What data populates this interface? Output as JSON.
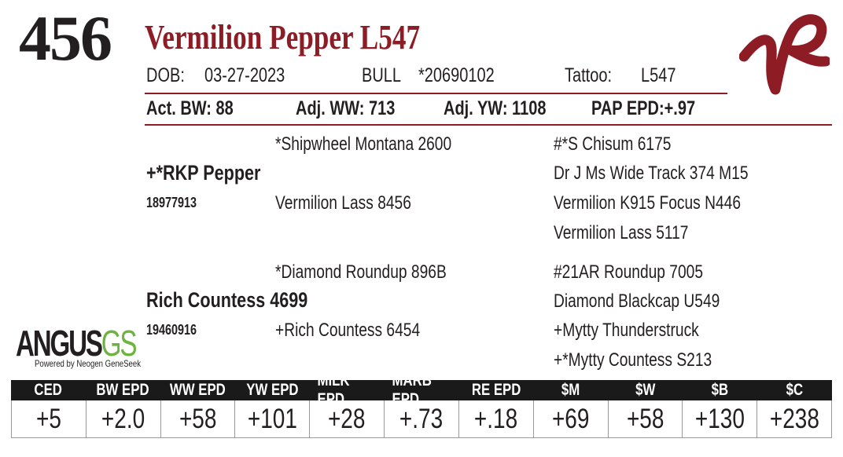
{
  "lot": "456",
  "name": "Vermilion Pepper L547",
  "info": {
    "dob_label": "DOB:",
    "dob": "03-27-2023",
    "sex": "BULL",
    "registration": "*20690102",
    "tattoo_label": "Tattoo:",
    "tattoo": "L547"
  },
  "stats": [
    {
      "label": "Act. BW:",
      "value": "88"
    },
    {
      "label": "Adj. WW:",
      "value": "713"
    },
    {
      "label": "Adj. YW:",
      "value": "1108"
    },
    {
      "label": "PAP EPD:",
      "value": "+.97"
    }
  ],
  "pedigree": {
    "sire": {
      "name": "+*RKP Pepper",
      "reg": "18977913",
      "sire": "*Shipwheel Montana 2600",
      "dam": "Vermilion Lass 8456",
      "grandparents": [
        "#*S Chisum 6175",
        "Dr J Ms Wide Track 374 M15",
        "Vermilion K915 Focus N446",
        "Vermilion Lass 5117"
      ]
    },
    "dam": {
      "name": "Rich Countess 4699",
      "reg": "19460916",
      "sire": "*Diamond Roundup 896B",
      "dam": "+Rich Countess 6454",
      "grandparents": [
        "#21AR Roundup 7005",
        "Diamond Blackcap U549",
        "+Mytty Thunderstruck",
        "+*Mytty Countess S213"
      ]
    }
  },
  "logo": {
    "main": "ANGUS",
    "suffix": "GS",
    "tagline": "Powered by Neogen GeneSeek"
  },
  "epds": {
    "headers": [
      "CED",
      "BW EPD",
      "WW EPD",
      "YW EPD",
      "MILK EPD",
      "MARB EPD",
      "RE EPD",
      "$M",
      "$W",
      "$B",
      "$C"
    ],
    "values": [
      "+5",
      "+2.0",
      "+58",
      "+101",
      "+28",
      "+.73",
      "+.18",
      "+69",
      "+58",
      "+130",
      "+238"
    ]
  }
}
